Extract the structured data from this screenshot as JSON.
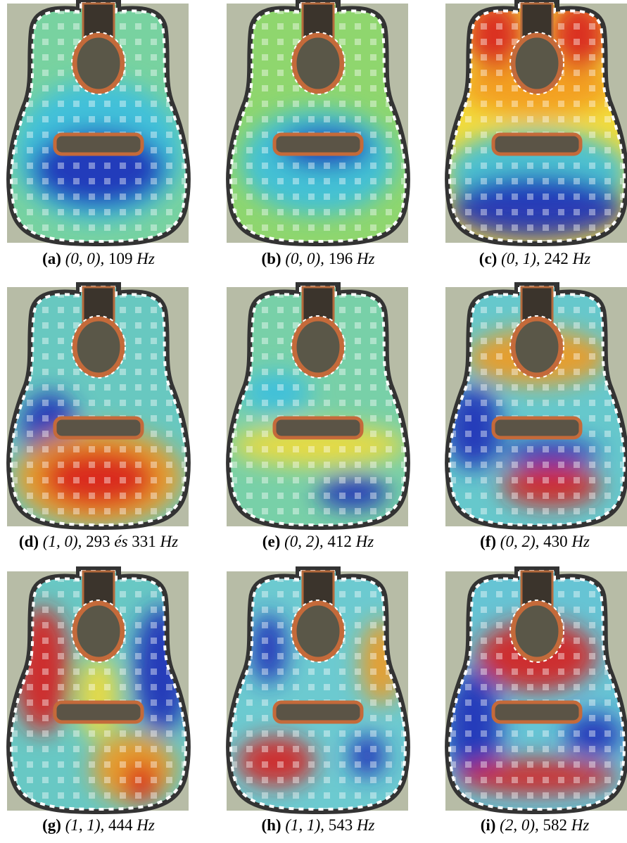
{
  "figure": {
    "panels": [
      {
        "label": "(a)",
        "mode": "(0, 0),",
        "frequency": "109",
        "unit": "Hz"
      },
      {
        "label": "(b)",
        "mode": "(0, 0),",
        "frequency": "196",
        "unit": "Hz"
      },
      {
        "label": "(c)",
        "mode": "(0, 1),",
        "frequency": "242",
        "unit": "Hz"
      },
      {
        "label": "(d)",
        "mode": "(1, 0),",
        "frequency": "293",
        "conjunction": "és",
        "frequency2": "331",
        "unit": "Hz"
      },
      {
        "label": "(e)",
        "mode": "(0, 2),",
        "frequency": "412",
        "unit": "Hz"
      },
      {
        "label": "(f)",
        "mode": "(0, 2),",
        "frequency": "430",
        "unit": "Hz"
      },
      {
        "label": "(g)",
        "mode": "(1, 1),",
        "frequency": "444",
        "unit": "Hz"
      },
      {
        "label": "(h)",
        "mode": "(1, 1),",
        "frequency": "543",
        "unit": "Hz"
      },
      {
        "label": "(i)",
        "mode": "(2, 0),",
        "frequency": "582",
        "unit": "Hz"
      }
    ]
  }
}
